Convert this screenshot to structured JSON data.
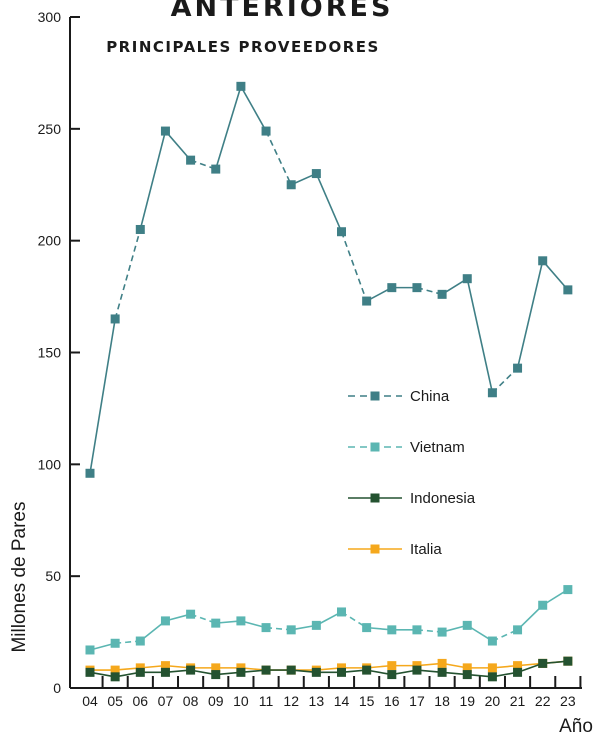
{
  "chart_data": {
    "type": "line",
    "title": "ANTERIORES",
    "subtitle": "PRINCIPALES PROVEEDORES",
    "xlabel": "Año",
    "ylabel": "Millones de Pares",
    "ylim": [
      0,
      300
    ],
    "yticks": [
      "0",
      "50",
      "100",
      "150",
      "200",
      "250",
      "300"
    ],
    "categories": [
      "04",
      "05",
      "06",
      "07",
      "08",
      "09",
      "10",
      "11",
      "12",
      "13",
      "14",
      "15",
      "16",
      "17",
      "18",
      "19",
      "20",
      "21",
      "22",
      "23"
    ],
    "legend_position": "right-center",
    "series": [
      {
        "name": "China",
        "color": "#3f7f86",
        "line_style": "mixed-dashed",
        "values": [
          96,
          165,
          205,
          249,
          236,
          232,
          269,
          249,
          225,
          230,
          204,
          173,
          179,
          179,
          176,
          183,
          132,
          143,
          191,
          178
        ]
      },
      {
        "name": "Vietnam",
        "color": "#5bb6b2",
        "line_style": "mixed-dashed",
        "values": [
          17,
          20,
          21,
          30,
          33,
          29,
          30,
          27,
          26,
          28,
          34,
          27,
          26,
          26,
          25,
          28,
          21,
          26,
          37,
          44
        ]
      },
      {
        "name": "Indonesia",
        "color": "#245230",
        "line_style": "solid",
        "values": [
          7,
          5,
          7,
          7,
          8,
          6,
          7,
          8,
          8,
          7,
          7,
          8,
          6,
          8,
          7,
          6,
          5,
          7,
          11,
          12
        ]
      },
      {
        "name": "Italia",
        "color": "#f5a81c",
        "line_style": "solid",
        "values": [
          8,
          8,
          9,
          10,
          9,
          9,
          9,
          8,
          8,
          8,
          9,
          9,
          10,
          10,
          11,
          9,
          9,
          10,
          11,
          12
        ]
      }
    ]
  }
}
